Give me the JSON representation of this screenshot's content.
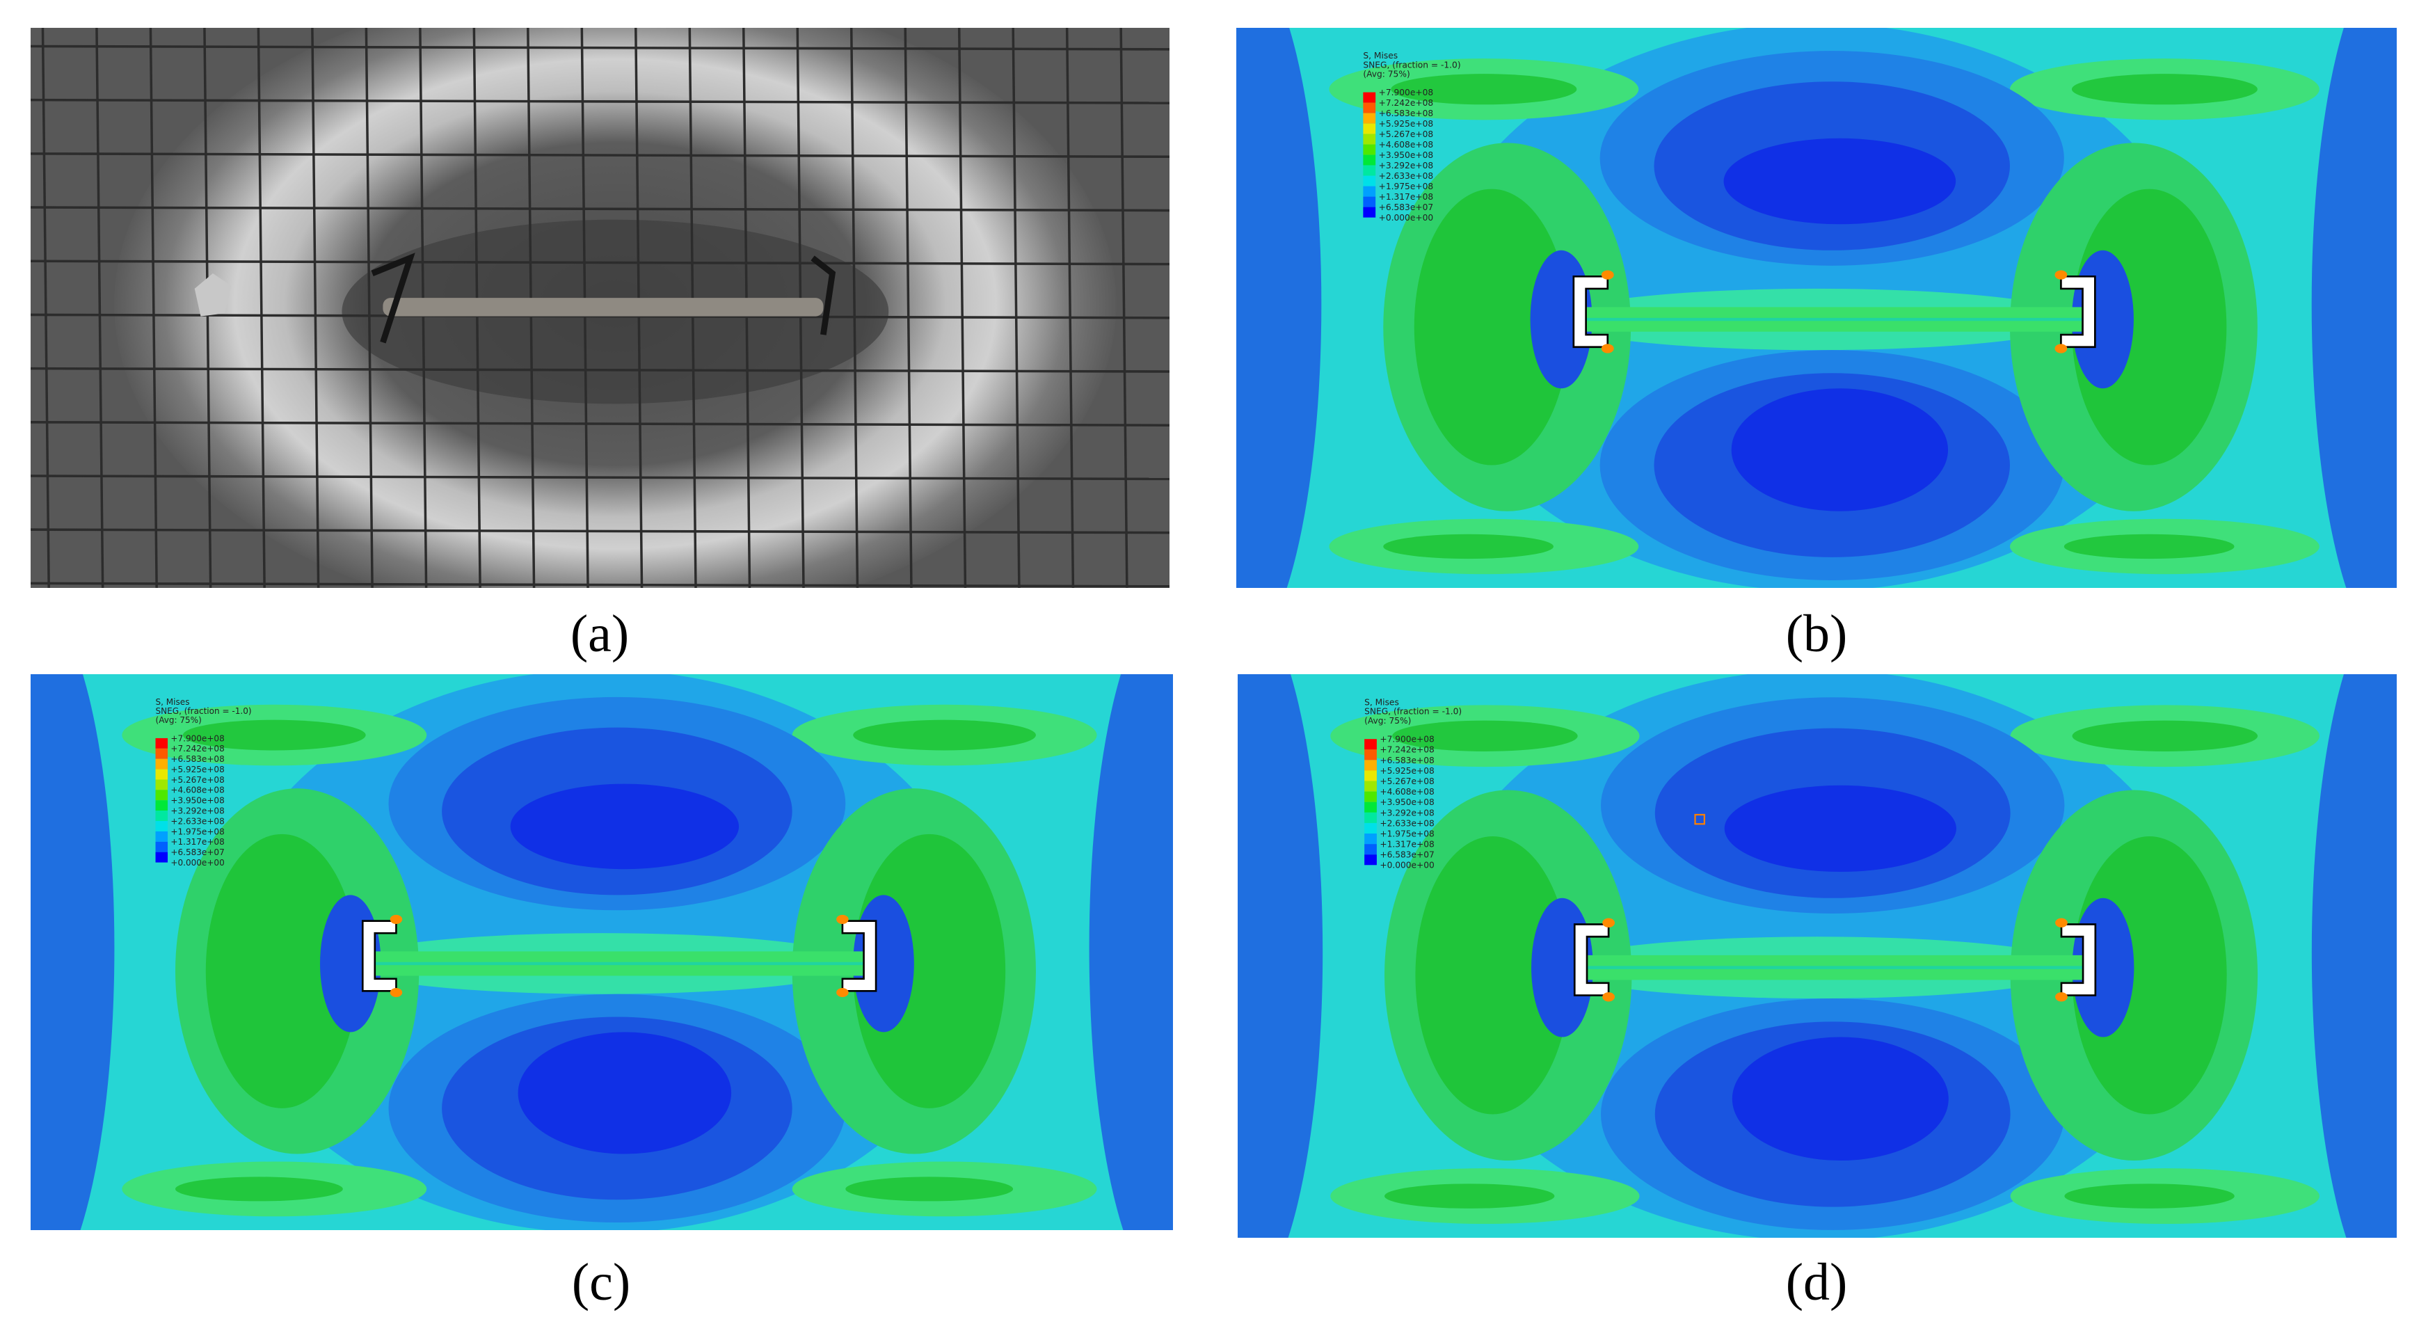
{
  "panels": [
    {
      "label": "(a)"
    },
    {
      "label": "(b)",
      "legend": {
        "title": [
          "S, Mises",
          "SNEG, (fraction = -1.0)",
          "(Avg: 75%)"
        ],
        "values": [
          "+7.900e+08",
          "+7.242e+08",
          "+6.583e+08",
          "+5.925e+08",
          "+5.267e+08",
          "+4.608e+08",
          "+3.950e+08",
          "+3.292e+08",
          "+2.633e+08",
          "+1.975e+08",
          "+1.317e+08",
          "+6.583e+07",
          "+0.000e+00"
        ]
      }
    },
    {
      "label": "(c)",
      "legend": {
        "title": [
          "S, Mises",
          "SNEG, (fraction = -1.0)",
          "(Avg: 75%)"
        ],
        "values": [
          "+7.900e+08",
          "+7.242e+08",
          "+6.583e+08",
          "+5.925e+08",
          "+5.267e+08",
          "+4.608e+08",
          "+3.950e+08",
          "+3.292e+08",
          "+2.633e+08",
          "+1.975e+08",
          "+1.317e+08",
          "+6.583e+07",
          "+0.000e+00"
        ]
      }
    },
    {
      "label": "(d)",
      "legend": {
        "title": [
          "S, Mises",
          "SNEG, (fraction = -1.0)",
          "(Avg: 75%)"
        ],
        "values": [
          "+7.900e+08",
          "+7.242e+08",
          "+6.583e+08",
          "+5.925e+08",
          "+5.267e+08",
          "+4.608e+08",
          "+3.950e+08",
          "+3.292e+08",
          "+2.633e+08",
          "+1.975e+08",
          "+1.317e+08",
          "+6.583e+07",
          "+0.000e+00"
        ]
      }
    }
  ]
}
